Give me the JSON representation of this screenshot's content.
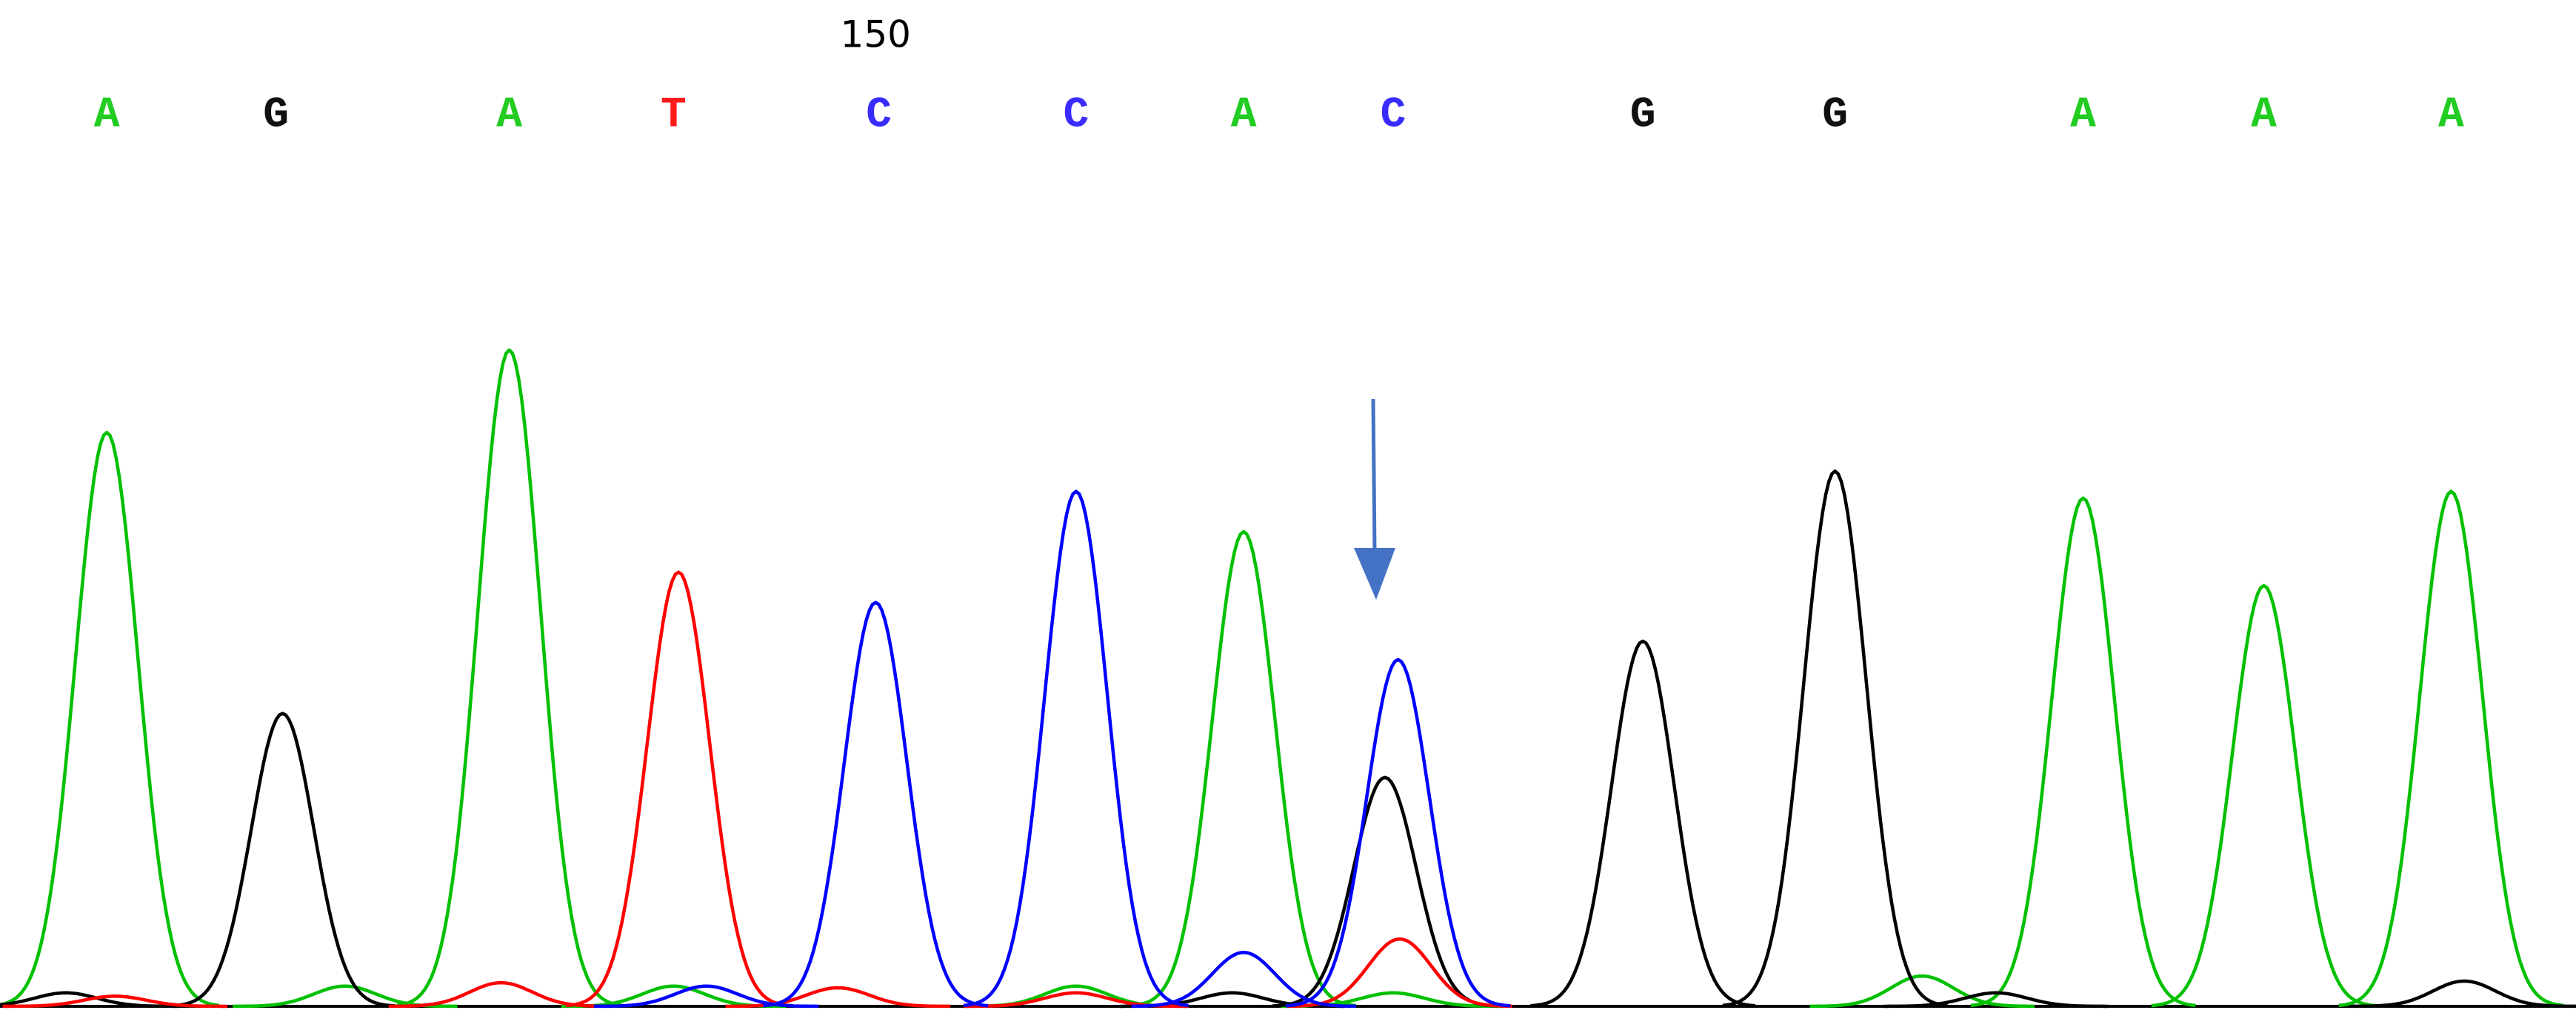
{
  "chart_data": {
    "type": "chromatogram",
    "xlim": [
      0,
      1568
    ],
    "ylim": [
      0,
      598
    ],
    "calls": [
      "A",
      "G",
      "A",
      "T",
      "C",
      "C",
      "A",
      "C",
      "G",
      "G",
      "A",
      "A",
      "A"
    ],
    "call_x": [
      65,
      168,
      310,
      410,
      535,
      655,
      757,
      848,
      1000,
      1117,
      1268,
      1378,
      1492
    ],
    "call_colors": {
      "A": "#22cc22",
      "G": "#111111",
      "T": "#ff1a1a",
      "C": "#3a2cff"
    },
    "position_labels": [
      {
        "x": 533,
        "value": 150
      }
    ],
    "series": [
      {
        "color": "#00c000",
        "x": [
          65,
          310,
          757,
          1268,
          1378,
          1492,
          210,
          410,
          655,
          1170,
          848
        ],
        "values": [
          341,
          390,
          282,
          302,
          250,
          306,
          12,
          12,
          12,
          18,
          8
        ]
      },
      {
        "color": "#000000",
        "x": [
          172,
          1000,
          1117,
          843,
          40,
          1215,
          1500,
          750
        ],
        "values": [
          174,
          217,
          318,
          136,
          8,
          8,
          15,
          8
        ]
      },
      {
        "color": "#ff0000",
        "x": [
          413,
          852,
          305,
          510,
          655,
          70
        ],
        "values": [
          258,
          40,
          14,
          11,
          8,
          6
        ]
      },
      {
        "color": "#0000ff",
        "x": [
          533,
          655,
          851,
          757,
          430
        ],
        "values": [
          240,
          306,
          206,
          32,
          12
        ]
      }
    ]
  }
}
